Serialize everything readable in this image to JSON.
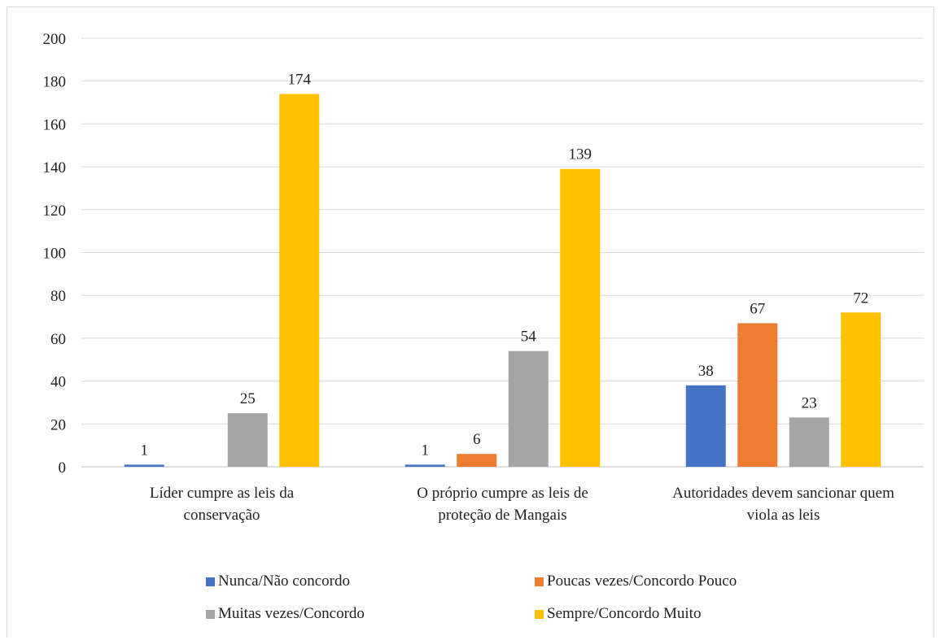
{
  "chart_data": {
    "type": "bar",
    "categories": [
      [
        "Líder cumpre as leis da",
        "conservação"
      ],
      [
        "O próprio cumpre as leis de",
        "proteção de Mangais"
      ],
      [
        "Autoridades devem sancionar quem",
        "viola as leis"
      ]
    ],
    "series": [
      {
        "name": "Nunca/Não concordo",
        "color": "#4472c4",
        "values": [
          1,
          1,
          38
        ]
      },
      {
        "name": "Poucas vezes/Concordo Pouco",
        "color": "#ed7d31",
        "values": [
          0,
          6,
          67
        ]
      },
      {
        "name": "Muitas vezes/Concordo",
        "color": "#a5a5a5",
        "values": [
          25,
          54,
          23
        ]
      },
      {
        "name": "Sempre/Concordo Muito",
        "color": "#ffc000",
        "values": [
          174,
          139,
          72
        ]
      }
    ],
    "ylim": [
      0,
      200
    ],
    "yticks": [
      0,
      20,
      40,
      60,
      80,
      100,
      120,
      140,
      160,
      180,
      200
    ],
    "grid": true,
    "legend": "bottom"
  }
}
